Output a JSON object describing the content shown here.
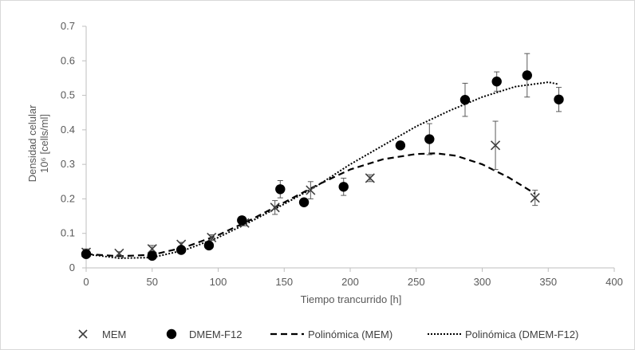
{
  "chart_data": {
    "type": "scatter",
    "title": "",
    "xlabel": "Tiempo trancurrido [h]",
    "ylabel_line1": "Densidad celular",
    "ylabel_line2": "10⁶ [cells/ml]",
    "xlim": [
      0,
      400
    ],
    "ylim": [
      0,
      0.7
    ],
    "xticks": [
      "0",
      "50",
      "100",
      "150",
      "200",
      "250",
      "300",
      "350",
      "400"
    ],
    "yticks": [
      "0",
      "0.1",
      "0.2",
      "0.3",
      "0.4",
      "0.5",
      "0.6",
      "0.7"
    ],
    "grid": false,
    "legend_position": "bottom",
    "series": [
      {
        "name": "MEM",
        "marker": "x",
        "color": "#404040",
        "x": [
          0,
          25,
          50,
          72,
          95,
          120,
          143,
          170,
          215,
          310,
          340
        ],
        "y": [
          0.045,
          0.042,
          0.055,
          0.068,
          0.088,
          0.13,
          0.175,
          0.225,
          0.26,
          0.355,
          0.203
        ],
        "err": [
          0.01,
          0.005,
          0.01,
          0.006,
          0.008,
          0.008,
          0.02,
          0.025,
          0.01,
          0.07,
          0.022
        ]
      },
      {
        "name": "DMEM-F12",
        "marker": "circle",
        "color": "#000000",
        "x": [
          0,
          50,
          72,
          93,
          118,
          147,
          165,
          195,
          238,
          260,
          287,
          311,
          334,
          358
        ],
        "y": [
          0.04,
          0.035,
          0.052,
          0.065,
          0.138,
          0.228,
          0.19,
          0.235,
          0.355,
          0.373,
          0.487,
          0.54,
          0.558,
          0.488
        ],
        "err": [
          0.006,
          0.005,
          0.006,
          0.006,
          0.006,
          0.025,
          0.006,
          0.025,
          0.006,
          0.045,
          0.048,
          0.028,
          0.063,
          0.035
        ]
      }
    ],
    "trendlines": [
      {
        "name": "Polinómica (MEM)",
        "style": "dashed",
        "color": "#000000",
        "x": [
          0,
          25,
          50,
          75,
          100,
          125,
          150,
          175,
          200,
          225,
          250,
          265,
          280,
          300,
          320,
          340
        ],
        "y": [
          0.04,
          0.034,
          0.038,
          0.06,
          0.095,
          0.14,
          0.19,
          0.24,
          0.285,
          0.315,
          0.33,
          0.332,
          0.325,
          0.3,
          0.262,
          0.215
        ]
      },
      {
        "name": "Polinómica (DMEM-F12)",
        "style": "dotted",
        "color": "#000000",
        "x": [
          0,
          25,
          50,
          75,
          100,
          125,
          150,
          175,
          200,
          225,
          250,
          275,
          300,
          325,
          350,
          358
        ],
        "y": [
          0.04,
          0.028,
          0.03,
          0.052,
          0.088,
          0.135,
          0.185,
          0.238,
          0.3,
          0.355,
          0.41,
          0.455,
          0.495,
          0.525,
          0.538,
          0.532
        ]
      }
    ],
    "colors": {
      "axis": "#bfbfbf",
      "text": "#595959",
      "frame": "#d9d9d9",
      "errorbar": "#595959"
    }
  }
}
